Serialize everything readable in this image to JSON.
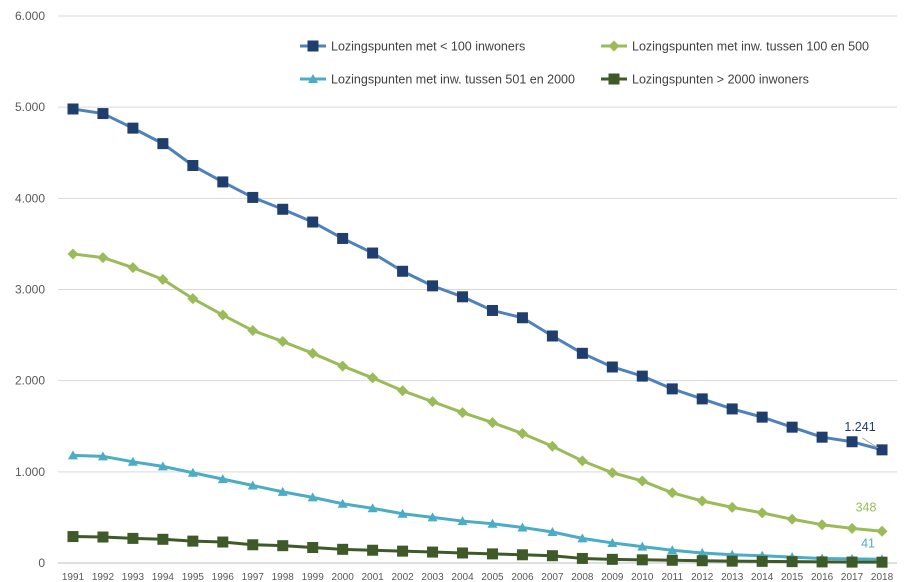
{
  "chart_data": {
    "type": "line",
    "title": "",
    "xlabel": "",
    "ylabel": "",
    "ylim": [
      0,
      6000
    ],
    "y_ticks": [
      0,
      1000,
      2000,
      3000,
      4000,
      5000,
      6000
    ],
    "y_tick_labels": [
      "0",
      "1.000",
      "2.000",
      "3.000",
      "4.000",
      "5.000",
      "6.000"
    ],
    "grid": "horizontal",
    "legend_position": "top-right",
    "categories": [
      "1991",
      "1992",
      "1993",
      "1994",
      "1995",
      "1996",
      "1997",
      "1998",
      "1999",
      "2000",
      "2001",
      "2002",
      "2003",
      "2004",
      "2005",
      "2006",
      "2007",
      "2008",
      "2009",
      "2010",
      "2011",
      "2012",
      "2013",
      "2014",
      "2015",
      "2016",
      "2017",
      "2018"
    ],
    "series": [
      {
        "name": "Lozingspunten met < 100 inwoners",
        "color": "#4F81BD",
        "marker_color": "#1F3E6E",
        "marker": "square",
        "values": [
          4980,
          4930,
          4770,
          4600,
          4360,
          4180,
          4010,
          3880,
          3740,
          3560,
          3400,
          3200,
          3040,
          2920,
          2770,
          2690,
          2490,
          2300,
          2150,
          2050,
          1910,
          1800,
          1690,
          1600,
          1490,
          1380,
          1330,
          1241
        ]
      },
      {
        "name": "Lozingspunten met inw. tussen 100 en 500",
        "color": "#9BBB59",
        "marker_color": "#9BBB59",
        "marker": "diamond",
        "values": [
          3390,
          3350,
          3240,
          3110,
          2900,
          2720,
          2550,
          2430,
          2300,
          2160,
          2030,
          1890,
          1770,
          1650,
          1540,
          1420,
          1280,
          1120,
          990,
          900,
          770,
          680,
          610,
          550,
          480,
          420,
          380,
          348
        ]
      },
      {
        "name": "Lozingspunten met inw. tussen 501 en 2000",
        "color": "#4BACC6",
        "marker_color": "#4BACC6",
        "marker": "triangle",
        "values": [
          1180,
          1170,
          1110,
          1060,
          990,
          920,
          850,
          780,
          720,
          650,
          600,
          540,
          500,
          460,
          430,
          390,
          340,
          270,
          220,
          180,
          140,
          110,
          90,
          80,
          65,
          50,
          45,
          41
        ]
      },
      {
        "name": "Lozingspunten > 2000 inwoners",
        "color": "#3D5A28",
        "marker_color": "#3D5A28",
        "marker": "square",
        "values": [
          290,
          285,
          270,
          260,
          240,
          230,
          200,
          190,
          170,
          150,
          140,
          130,
          120,
          110,
          100,
          90,
          80,
          50,
          40,
          35,
          30,
          25,
          20,
          18,
          15,
          12,
          10,
          9
        ]
      }
    ],
    "annotations": [
      {
        "text": "1.241",
        "series_index": 0,
        "color": "#1F3E6E"
      },
      {
        "text": "348",
        "series_index": 1,
        "color": "#9BBB59"
      },
      {
        "text": "41",
        "series_index": 2,
        "color": "#4BACC6"
      }
    ]
  }
}
